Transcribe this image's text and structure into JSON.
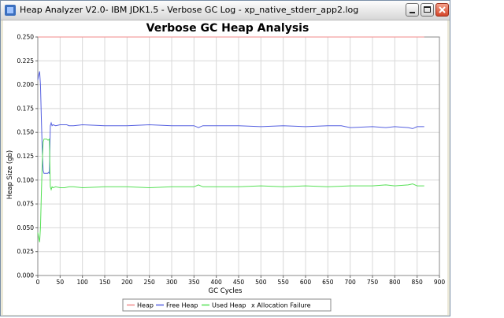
{
  "window": {
    "title": "Heap Analyzer V2.0- IBM JDK1.5 - Verbose GC Log - xp_native_stderr_app2.log"
  },
  "colors": {
    "heap": "#f08a8a",
    "free_heap": "#5560e0",
    "used_heap": "#55e055",
    "allocation_failure": "#e0e040"
  },
  "chart_data": {
    "type": "line",
    "title": "Verbose GC Heap Analysis",
    "xlabel": "GC Cycles",
    "ylabel": "Heap Size (gb)",
    "xlim": [
      0,
      900
    ],
    "ylim": [
      0,
      0.25
    ],
    "x_ticks": [
      "0",
      "50",
      "100",
      "150",
      "200",
      "250",
      "300",
      "350",
      "400",
      "450",
      "500",
      "550",
      "600",
      "650",
      "700",
      "750",
      "800",
      "850",
      "900"
    ],
    "y_ticks": [
      "0.000",
      "0.025",
      "0.050",
      "0.075",
      "0.100",
      "0.125",
      "0.150",
      "0.175",
      "0.200",
      "0.225",
      "0.250"
    ],
    "grid": true,
    "legend_position": "bottom",
    "series": [
      {
        "name": "Heap",
        "x": [
          0,
          866
        ],
        "y": [
          0.25,
          0.25
        ]
      },
      {
        "name": "Free Heap",
        "x": [
          0,
          2,
          4,
          6,
          8,
          10,
          12,
          14,
          16,
          18,
          20,
          22,
          24,
          26,
          28,
          30,
          32,
          34,
          40,
          50,
          60,
          65,
          70,
          80,
          100,
          150,
          200,
          250,
          300,
          350,
          360,
          370,
          400,
          450,
          500,
          550,
          600,
          650,
          680,
          700,
          750,
          780,
          800,
          830,
          840,
          850,
          866
        ],
        "y": [
          0.205,
          0.21,
          0.214,
          0.2,
          0.165,
          0.13,
          0.11,
          0.107,
          0.107,
          0.107,
          0.107,
          0.107,
          0.108,
          0.107,
          0.157,
          0.16,
          0.157,
          0.158,
          0.157,
          0.158,
          0.158,
          0.158,
          0.157,
          0.157,
          0.158,
          0.157,
          0.157,
          0.158,
          0.157,
          0.157,
          0.155,
          0.157,
          0.157,
          0.157,
          0.156,
          0.157,
          0.156,
          0.157,
          0.157,
          0.155,
          0.156,
          0.155,
          0.156,
          0.155,
          0.154,
          0.156,
          0.156
        ]
      },
      {
        "name": "Used Heap",
        "x": [
          0,
          2,
          4,
          6,
          8,
          10,
          12,
          14,
          16,
          18,
          20,
          22,
          24,
          26,
          28,
          30,
          32,
          34,
          40,
          50,
          60,
          70,
          80,
          100,
          150,
          200,
          250,
          300,
          350,
          360,
          370,
          400,
          450,
          500,
          550,
          600,
          650,
          700,
          750,
          780,
          800,
          830,
          840,
          850,
          866
        ],
        "y": [
          0.045,
          0.04,
          0.035,
          0.05,
          0.085,
          0.12,
          0.14,
          0.143,
          0.143,
          0.143,
          0.143,
          0.142,
          0.142,
          0.143,
          0.093,
          0.09,
          0.093,
          0.092,
          0.093,
          0.092,
          0.092,
          0.093,
          0.093,
          0.092,
          0.093,
          0.093,
          0.092,
          0.093,
          0.093,
          0.095,
          0.093,
          0.093,
          0.093,
          0.094,
          0.093,
          0.094,
          0.093,
          0.094,
          0.094,
          0.095,
          0.094,
          0.095,
          0.096,
          0.094,
          0.094
        ]
      },
      {
        "name": "x Allocation Failure",
        "x": [],
        "y": []
      }
    ]
  }
}
